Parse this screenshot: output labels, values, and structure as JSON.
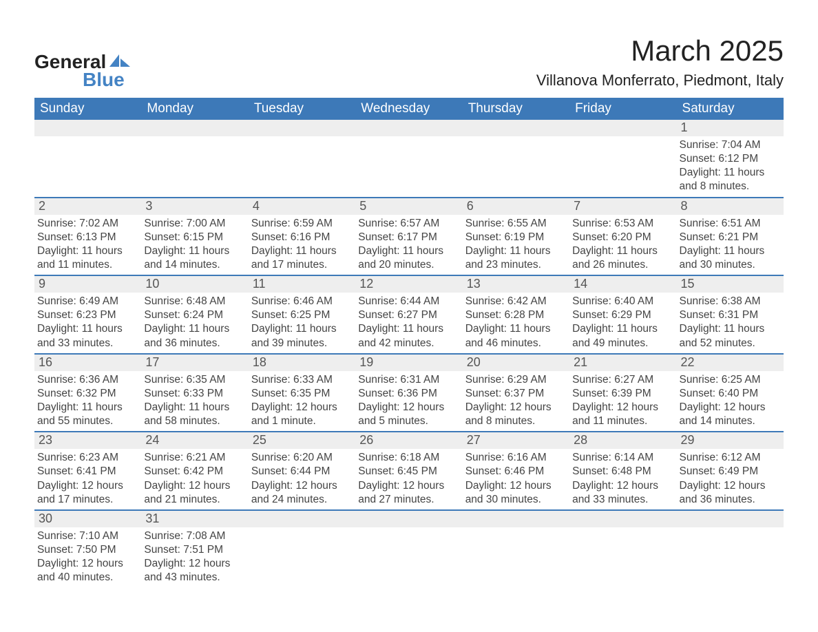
{
  "brand": {
    "part1": "General",
    "part2": "Blue"
  },
  "title": "March 2025",
  "subtitle": "Villanova Monferrato, Piedmont, Italy",
  "colors": {
    "header_bg": "#3d79b8",
    "strip_bg": "#eeeeee",
    "text": "#333333",
    "logo_blue": "#4483c4",
    "background": "#ffffff"
  },
  "typography": {
    "title_fontsize": 42,
    "subtitle_fontsize": 22,
    "header_fontsize": 19,
    "daynum_fontsize": 18,
    "body_fontsize": 15.5,
    "font_family": "Arial"
  },
  "calendar": {
    "day_headers": [
      "Sunday",
      "Monday",
      "Tuesday",
      "Wednesday",
      "Thursday",
      "Friday",
      "Saturday"
    ],
    "weeks": [
      [
        {
          "n": "",
          "sunrise": "",
          "sunset": "",
          "daylight": ""
        },
        {
          "n": "",
          "sunrise": "",
          "sunset": "",
          "daylight": ""
        },
        {
          "n": "",
          "sunrise": "",
          "sunset": "",
          "daylight": ""
        },
        {
          "n": "",
          "sunrise": "",
          "sunset": "",
          "daylight": ""
        },
        {
          "n": "",
          "sunrise": "",
          "sunset": "",
          "daylight": ""
        },
        {
          "n": "",
          "sunrise": "",
          "sunset": "",
          "daylight": ""
        },
        {
          "n": "1",
          "sunrise": "Sunrise: 7:04 AM",
          "sunset": "Sunset: 6:12 PM",
          "daylight": "Daylight: 11 hours and 8 minutes."
        }
      ],
      [
        {
          "n": "2",
          "sunrise": "Sunrise: 7:02 AM",
          "sunset": "Sunset: 6:13 PM",
          "daylight": "Daylight: 11 hours and 11 minutes."
        },
        {
          "n": "3",
          "sunrise": "Sunrise: 7:00 AM",
          "sunset": "Sunset: 6:15 PM",
          "daylight": "Daylight: 11 hours and 14 minutes."
        },
        {
          "n": "4",
          "sunrise": "Sunrise: 6:59 AM",
          "sunset": "Sunset: 6:16 PM",
          "daylight": "Daylight: 11 hours and 17 minutes."
        },
        {
          "n": "5",
          "sunrise": "Sunrise: 6:57 AM",
          "sunset": "Sunset: 6:17 PM",
          "daylight": "Daylight: 11 hours and 20 minutes."
        },
        {
          "n": "6",
          "sunrise": "Sunrise: 6:55 AM",
          "sunset": "Sunset: 6:19 PM",
          "daylight": "Daylight: 11 hours and 23 minutes."
        },
        {
          "n": "7",
          "sunrise": "Sunrise: 6:53 AM",
          "sunset": "Sunset: 6:20 PM",
          "daylight": "Daylight: 11 hours and 26 minutes."
        },
        {
          "n": "8",
          "sunrise": "Sunrise: 6:51 AM",
          "sunset": "Sunset: 6:21 PM",
          "daylight": "Daylight: 11 hours and 30 minutes."
        }
      ],
      [
        {
          "n": "9",
          "sunrise": "Sunrise: 6:49 AM",
          "sunset": "Sunset: 6:23 PM",
          "daylight": "Daylight: 11 hours and 33 minutes."
        },
        {
          "n": "10",
          "sunrise": "Sunrise: 6:48 AM",
          "sunset": "Sunset: 6:24 PM",
          "daylight": "Daylight: 11 hours and 36 minutes."
        },
        {
          "n": "11",
          "sunrise": "Sunrise: 6:46 AM",
          "sunset": "Sunset: 6:25 PM",
          "daylight": "Daylight: 11 hours and 39 minutes."
        },
        {
          "n": "12",
          "sunrise": "Sunrise: 6:44 AM",
          "sunset": "Sunset: 6:27 PM",
          "daylight": "Daylight: 11 hours and 42 minutes."
        },
        {
          "n": "13",
          "sunrise": "Sunrise: 6:42 AM",
          "sunset": "Sunset: 6:28 PM",
          "daylight": "Daylight: 11 hours and 46 minutes."
        },
        {
          "n": "14",
          "sunrise": "Sunrise: 6:40 AM",
          "sunset": "Sunset: 6:29 PM",
          "daylight": "Daylight: 11 hours and 49 minutes."
        },
        {
          "n": "15",
          "sunrise": "Sunrise: 6:38 AM",
          "sunset": "Sunset: 6:31 PM",
          "daylight": "Daylight: 11 hours and 52 minutes."
        }
      ],
      [
        {
          "n": "16",
          "sunrise": "Sunrise: 6:36 AM",
          "sunset": "Sunset: 6:32 PM",
          "daylight": "Daylight: 11 hours and 55 minutes."
        },
        {
          "n": "17",
          "sunrise": "Sunrise: 6:35 AM",
          "sunset": "Sunset: 6:33 PM",
          "daylight": "Daylight: 11 hours and 58 minutes."
        },
        {
          "n": "18",
          "sunrise": "Sunrise: 6:33 AM",
          "sunset": "Sunset: 6:35 PM",
          "daylight": "Daylight: 12 hours and 1 minute."
        },
        {
          "n": "19",
          "sunrise": "Sunrise: 6:31 AM",
          "sunset": "Sunset: 6:36 PM",
          "daylight": "Daylight: 12 hours and 5 minutes."
        },
        {
          "n": "20",
          "sunrise": "Sunrise: 6:29 AM",
          "sunset": "Sunset: 6:37 PM",
          "daylight": "Daylight: 12 hours and 8 minutes."
        },
        {
          "n": "21",
          "sunrise": "Sunrise: 6:27 AM",
          "sunset": "Sunset: 6:39 PM",
          "daylight": "Daylight: 12 hours and 11 minutes."
        },
        {
          "n": "22",
          "sunrise": "Sunrise: 6:25 AM",
          "sunset": "Sunset: 6:40 PM",
          "daylight": "Daylight: 12 hours and 14 minutes."
        }
      ],
      [
        {
          "n": "23",
          "sunrise": "Sunrise: 6:23 AM",
          "sunset": "Sunset: 6:41 PM",
          "daylight": "Daylight: 12 hours and 17 minutes."
        },
        {
          "n": "24",
          "sunrise": "Sunrise: 6:21 AM",
          "sunset": "Sunset: 6:42 PM",
          "daylight": "Daylight: 12 hours and 21 minutes."
        },
        {
          "n": "25",
          "sunrise": "Sunrise: 6:20 AM",
          "sunset": "Sunset: 6:44 PM",
          "daylight": "Daylight: 12 hours and 24 minutes."
        },
        {
          "n": "26",
          "sunrise": "Sunrise: 6:18 AM",
          "sunset": "Sunset: 6:45 PM",
          "daylight": "Daylight: 12 hours and 27 minutes."
        },
        {
          "n": "27",
          "sunrise": "Sunrise: 6:16 AM",
          "sunset": "Sunset: 6:46 PM",
          "daylight": "Daylight: 12 hours and 30 minutes."
        },
        {
          "n": "28",
          "sunrise": "Sunrise: 6:14 AM",
          "sunset": "Sunset: 6:48 PM",
          "daylight": "Daylight: 12 hours and 33 minutes."
        },
        {
          "n": "29",
          "sunrise": "Sunrise: 6:12 AM",
          "sunset": "Sunset: 6:49 PM",
          "daylight": "Daylight: 12 hours and 36 minutes."
        }
      ],
      [
        {
          "n": "30",
          "sunrise": "Sunrise: 7:10 AM",
          "sunset": "Sunset: 7:50 PM",
          "daylight": "Daylight: 12 hours and 40 minutes."
        },
        {
          "n": "31",
          "sunrise": "Sunrise: 7:08 AM",
          "sunset": "Sunset: 7:51 PM",
          "daylight": "Daylight: 12 hours and 43 minutes."
        },
        {
          "n": "",
          "sunrise": "",
          "sunset": "",
          "daylight": ""
        },
        {
          "n": "",
          "sunrise": "",
          "sunset": "",
          "daylight": ""
        },
        {
          "n": "",
          "sunrise": "",
          "sunset": "",
          "daylight": ""
        },
        {
          "n": "",
          "sunrise": "",
          "sunset": "",
          "daylight": ""
        },
        {
          "n": "",
          "sunrise": "",
          "sunset": "",
          "daylight": ""
        }
      ]
    ]
  }
}
